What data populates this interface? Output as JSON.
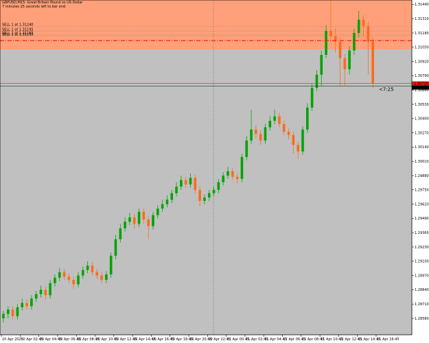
{
  "chart_data": {
    "type": "candlestick",
    "title": "GBPUSD,M15:  Great Britain Pound vs US Dollar",
    "subtitle": "7 minutes 25 seconds left to bar end",
    "countdown": "<7:25",
    "up_color": "#00a400",
    "down_color": "#ff6a1a",
    "background": "#c0c0c0",
    "zone_color": "#ffa07a",
    "zone_low": 1.3103,
    "level_line": 1.3111,
    "level_color": "#e8190a",
    "price_line": 1.3072,
    "price_label": "1.30720",
    "orders": [
      {
        "label": "SELL 1 at 1.31240",
        "price": 1.3124
      },
      {
        "label": "SELL 1 at 1.31195",
        "price": 1.31195
      },
      {
        "label": "SELL 1 at 1.31165",
        "price": 1.31165
      },
      {
        "label": "SELL 1 at 1.31150",
        "price": 1.3115
      }
    ],
    "ylim": [
      1.2843,
      1.3148
    ],
    "yticks": [
      {
        "value": 1.2858,
        "label": "1.28580"
      },
      {
        "value": 1.2871,
        "label": "1.28710"
      },
      {
        "value": 1.2884,
        "label": "1.28840"
      },
      {
        "value": 1.2897,
        "label": "1.28970"
      },
      {
        "value": 1.291,
        "label": "1.29100"
      },
      {
        "value": 1.2923,
        "label": "1.29230"
      },
      {
        "value": 1.2936,
        "label": "1.29360"
      },
      {
        "value": 1.2949,
        "label": "1.29490"
      },
      {
        "value": 1.2962,
        "label": "1.29620"
      },
      {
        "value": 1.2975,
        "label": "1.29750"
      },
      {
        "value": 1.2988,
        "label": "1.29880"
      },
      {
        "value": 1.3001,
        "label": "1.30010"
      },
      {
        "value": 1.3014,
        "label": "1.30140"
      },
      {
        "value": 1.3027,
        "label": "1.30270"
      },
      {
        "value": 1.304,
        "label": "1.30400"
      },
      {
        "value": 1.3053,
        "label": "1.30530"
      },
      {
        "value": 1.3066,
        "label": "1.30660"
      },
      {
        "value": 1.3079,
        "label": "1.30790"
      },
      {
        "value": 1.3092,
        "label": "1.30920"
      },
      {
        "value": 1.3105,
        "label": "1.31050"
      },
      {
        "value": 1.3118,
        "label": "1.31180"
      },
      {
        "value": 1.3131,
        "label": "1.31310"
      },
      {
        "value": 1.3144,
        "label": "1.31440"
      }
    ],
    "time_labels": [
      "10 Apr 2025",
      "10 Apr 02:45",
      "10 Apr 04:45",
      "10 Apr 06:45",
      "10 Apr 08:45",
      "10 Apr 10:45",
      "10 Apr 12:45",
      "10 Apr 14:45",
      "10 Apr 16:45",
      "10 Apr 18:45",
      "10 Apr 20:45",
      "10 Apr 22:45",
      "11 Apr 00:45",
      "11 Apr 02:45",
      "11 Apr 04:45",
      "11 Apr 06:45",
      "11 Apr 08:45",
      "11 Apr 10:45",
      "11 Apr 12:45",
      "11 Apr 14:45",
      "11 Apr 16:45"
    ],
    "open": [
      1.2858,
      1.2862,
      1.2866,
      1.286,
      1.2868,
      1.2872,
      1.2869,
      1.2876,
      1.288,
      1.2884,
      1.2879,
      1.289,
      1.2895,
      1.29,
      1.2896,
      1.2893,
      1.2889,
      1.2897,
      1.2902,
      1.2906,
      1.29,
      1.2897,
      1.2893,
      1.2898,
      1.2915,
      1.293,
      1.294,
      1.2946,
      1.295,
      1.2944,
      1.2955,
      1.2948,
      1.2942,
      1.2952,
      1.2958,
      1.2962,
      1.2966,
      1.2972,
      1.2978,
      1.2984,
      1.298,
      1.2986,
      1.2975,
      1.2965,
      1.2968,
      1.2972,
      1.2975,
      1.2982,
      1.2988,
      1.2992,
      1.2987,
      1.2985,
      1.3005,
      1.302,
      1.303,
      1.3026,
      1.302,
      1.3032,
      1.3038,
      1.3042,
      1.3035,
      1.3028,
      1.3025,
      1.3016,
      1.301,
      1.303,
      1.305,
      1.3068,
      1.308,
      1.3098,
      1.312,
      1.3115,
      1.311,
      1.3095,
      1.3085,
      1.3102,
      1.3118,
      1.313,
      1.3124,
      1.311
    ],
    "high": [
      1.2865,
      1.2869,
      1.2869,
      1.2871,
      1.2876,
      1.2875,
      1.2879,
      1.2883,
      1.2888,
      1.2887,
      1.2893,
      1.2898,
      1.2904,
      1.2903,
      1.2899,
      1.2896,
      1.29,
      1.2905,
      1.291,
      1.2909,
      1.2903,
      1.29,
      1.2901,
      1.2918,
      1.2934,
      1.2944,
      1.295,
      1.2954,
      1.2953,
      1.2958,
      1.2958,
      1.2951,
      1.2955,
      1.2961,
      1.2966,
      1.297,
      1.2975,
      1.2982,
      1.2988,
      1.2987,
      1.299,
      1.2989,
      1.2978,
      1.2971,
      1.2975,
      1.2978,
      1.2985,
      1.2991,
      1.2996,
      1.2995,
      1.299,
      1.3008,
      1.3024,
      1.3048,
      1.3034,
      1.3029,
      1.3035,
      1.3042,
      1.3048,
      1.3045,
      1.3038,
      1.3031,
      1.3028,
      1.3019,
      1.3033,
      1.3054,
      1.3072,
      1.3084,
      1.3102,
      1.3125,
      1.3148,
      1.3122,
      1.3114,
      1.3099,
      1.3106,
      1.3122,
      1.3138,
      1.3134,
      1.3128,
      1.3114
    ],
    "low": [
      1.2854,
      1.2858,
      1.2857,
      1.2857,
      1.2865,
      1.2866,
      1.2866,
      1.2873,
      1.2877,
      1.2875,
      1.2876,
      1.2887,
      1.2892,
      1.2893,
      1.289,
      1.2885,
      1.2886,
      1.2894,
      1.2899,
      1.2897,
      1.2894,
      1.289,
      1.289,
      1.2895,
      1.2912,
      1.2927,
      1.2937,
      1.2943,
      1.294,
      1.2941,
      1.2944,
      1.293,
      1.2939,
      1.2949,
      1.2955,
      1.2959,
      1.2963,
      1.2969,
      1.2975,
      1.2977,
      1.2977,
      1.2972,
      1.296,
      1.2962,
      1.2965,
      1.2969,
      1.2972,
      1.2979,
      1.2985,
      1.2984,
      1.2981,
      1.2982,
      1.3002,
      1.3017,
      1.3022,
      1.3016,
      1.3017,
      1.3029,
      1.3035,
      1.3032,
      1.3025,
      1.3021,
      1.3008,
      1.3003,
      1.3007,
      1.3027,
      1.3047,
      1.3065,
      1.307,
      1.3095,
      1.311,
      1.31,
      1.307,
      1.307,
      1.308,
      1.3098,
      1.3114,
      1.3115,
      1.308,
      1.3068
    ],
    "close": [
      1.2862,
      1.2866,
      1.286,
      1.2868,
      1.2872,
      1.2869,
      1.2876,
      1.288,
      1.2884,
      1.2879,
      1.289,
      1.2895,
      1.29,
      1.2896,
      1.2893,
      1.2889,
      1.2897,
      1.2902,
      1.2906,
      1.29,
      1.2897,
      1.2893,
      1.2898,
      1.2915,
      1.293,
      1.294,
      1.2946,
      1.295,
      1.2944,
      1.2955,
      1.2948,
      1.2942,
      1.2952,
      1.2958,
      1.2962,
      1.2966,
      1.2972,
      1.2978,
      1.2984,
      1.298,
      1.2986,
      1.2975,
      1.2965,
      1.2968,
      1.2972,
      1.2975,
      1.2982,
      1.2988,
      1.2992,
      1.2987,
      1.2985,
      1.3005,
      1.302,
      1.303,
      1.3026,
      1.302,
      1.3032,
      1.3038,
      1.3042,
      1.3035,
      1.3028,
      1.3025,
      1.3016,
      1.301,
      1.303,
      1.305,
      1.3068,
      1.308,
      1.3098,
      1.312,
      1.3115,
      1.311,
      1.3095,
      1.3085,
      1.3102,
      1.3118,
      1.313,
      1.3124,
      1.311,
      1.3072
    ]
  }
}
